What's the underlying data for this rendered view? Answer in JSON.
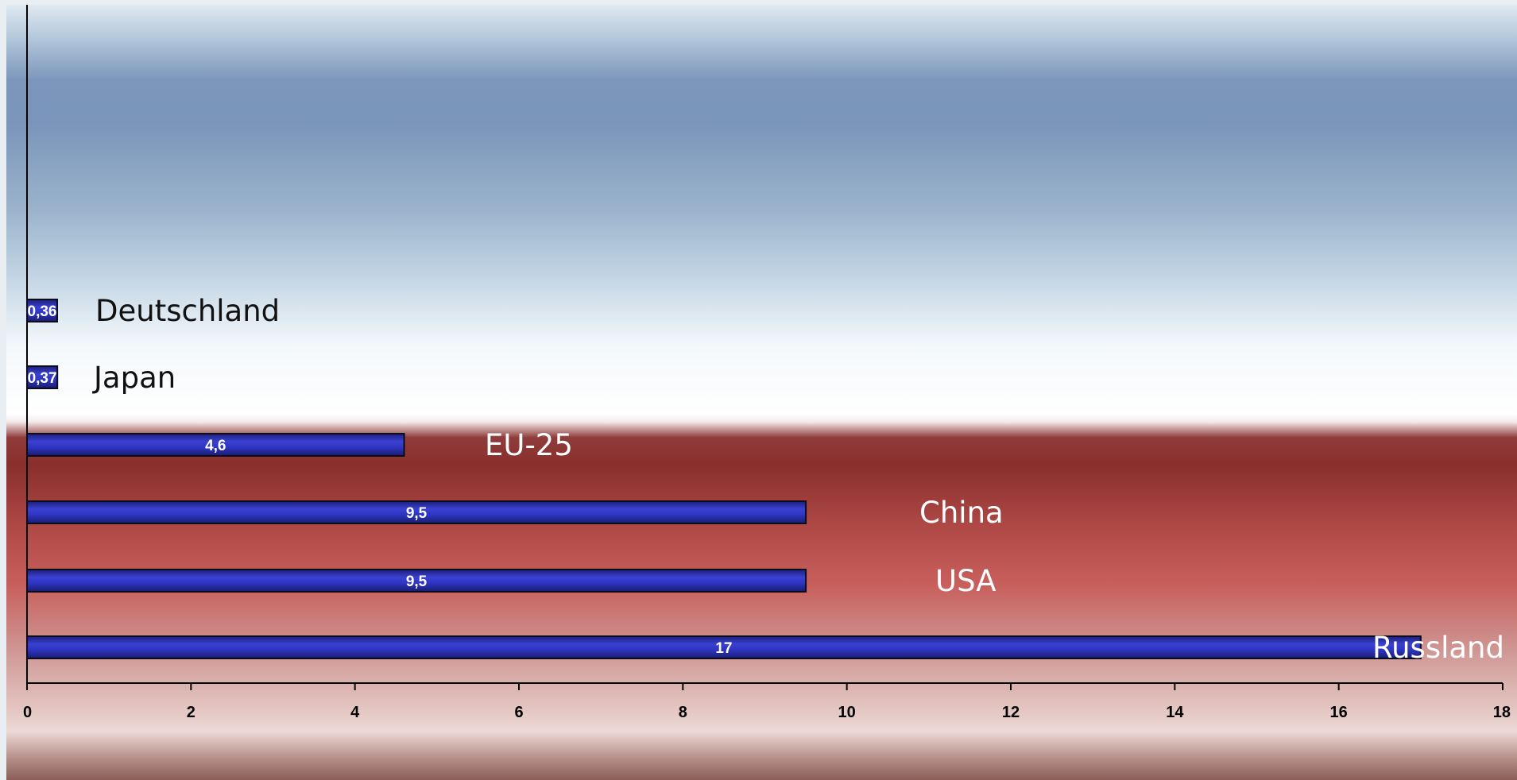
{
  "chart_data": {
    "type": "bar",
    "orientation": "horizontal",
    "categories": [
      "Deutschland",
      "Japan",
      "EU-25",
      "China",
      "USA",
      "Russland"
    ],
    "values": [
      0.36,
      0.37,
      4.6,
      9.5,
      9.5,
      17
    ],
    "value_labels": [
      "0,36",
      "0,37",
      "4,6",
      "9,5",
      "9,5",
      "17"
    ],
    "label_colors": [
      "#111111",
      "#111111",
      "#ffffff",
      "#ffffff",
      "#ffffff",
      "#ffffff"
    ],
    "xlim": [
      0,
      18
    ],
    "xticks": [
      "0",
      "2",
      "4",
      "6",
      "8",
      "10",
      "12",
      "14",
      "16",
      "18"
    ],
    "bar_color": "#2a2fb8",
    "title": "",
    "xlabel": "",
    "ylabel": "",
    "grid": false,
    "legend": "none"
  }
}
